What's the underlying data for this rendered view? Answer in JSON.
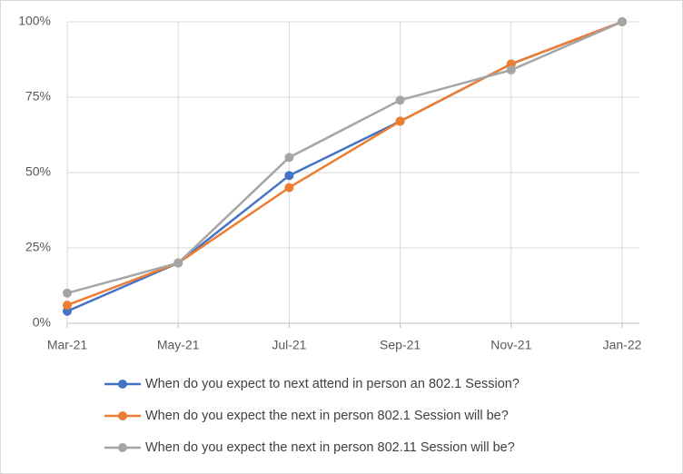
{
  "chart_data": {
    "type": "line",
    "x": [
      "Mar-21",
      "May-21",
      "Jul-21",
      "Sep-21",
      "Nov-21",
      "Jan-22"
    ],
    "series": [
      {
        "name": "When do you expect to next attend in person an 802.1 Session?",
        "color": "#4472c4",
        "values": [
          4,
          20,
          49,
          67,
          86,
          100
        ]
      },
      {
        "name": "When do you expect the next in person 802.1 Session will be?",
        "color": "#ed7d31",
        "values": [
          6,
          20,
          45,
          67,
          86,
          100
        ]
      },
      {
        "name": "When do you expect the next in person 802.11 Session will be?",
        "color": "#a5a5a5",
        "values": [
          10,
          20,
          55,
          74,
          84,
          100
        ]
      }
    ],
    "ylim": [
      0,
      100
    ],
    "yticks": [
      {
        "value": 0,
        "label": "0%"
      },
      {
        "value": 25,
        "label": "25%"
      },
      {
        "value": 50,
        "label": "50%"
      },
      {
        "value": 75,
        "label": "75%"
      },
      {
        "value": 100,
        "label": "100%"
      }
    ],
    "grid": true,
    "legend": "bottom"
  }
}
